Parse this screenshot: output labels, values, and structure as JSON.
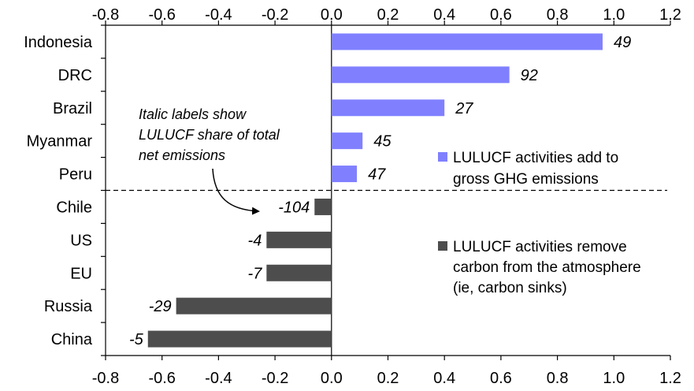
{
  "chart_data": {
    "type": "bar",
    "orientation": "horizontal",
    "categories": [
      "Indonesia",
      "DRC",
      "Brazil",
      "Myanmar",
      "Peru",
      "Chile",
      "US",
      "EU",
      "Russia",
      "China"
    ],
    "values": [
      0.96,
      0.63,
      0.4,
      0.11,
      0.09,
      -0.06,
      -0.23,
      -0.23,
      -0.55,
      -0.65
    ],
    "data_labels": [
      "49",
      "92",
      "27",
      "45",
      "47",
      "-104",
      "-4",
      "-7",
      "-29",
      "-5"
    ],
    "xlim": [
      -0.8,
      1.2
    ],
    "x_ticks": [
      "-0.8",
      "-0.6",
      "-0.4",
      "-0.2",
      "0.0",
      "0.2",
      "0.4",
      "0.6",
      "0.8",
      "1.0",
      "1.2"
    ],
    "x_axis_top_and_bottom": true,
    "grid": false,
    "colors": {
      "positive": "#8080ff",
      "negative": "#4d4d4d"
    },
    "legend": {
      "placement": "right",
      "positive_lines": [
        "LULUCF activities add to",
        "gross GHG emissions"
      ],
      "negative_lines": [
        "LULUCF activities remove",
        "carbon from the atmosphere",
        "(ie, carbon sinks)"
      ]
    },
    "annotation": {
      "lines": [
        "Italic labels show",
        "LULUCF share of total",
        "net emissions"
      ]
    },
    "dashed_divider_after_index": 4
  }
}
